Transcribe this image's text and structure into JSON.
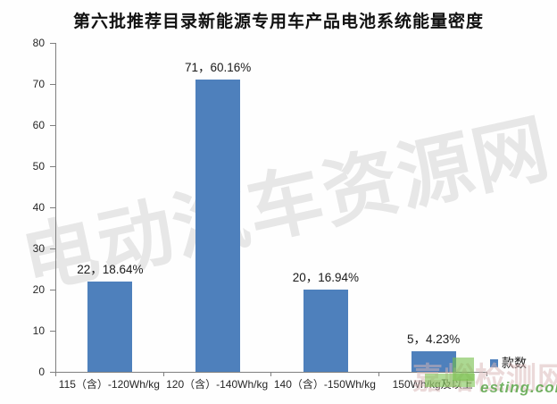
{
  "title": "第六批推荐目录新能源专用车产品电池系统能量密度",
  "chart_data": {
    "type": "bar",
    "title": "第六批推荐目录新能源专用车产品电池系统能量密度",
    "categories": [
      "115（含）-120Wh/kg",
      "120（含）-140Wh/kg",
      "140（含）-150Wh/kg",
      "150Wh/kg及以上"
    ],
    "values": [
      22,
      71,
      20,
      5
    ],
    "data_labels": [
      "22，18.64%",
      "71，60.16%",
      "20，16.94%",
      "5，4.23%"
    ],
    "series_name": "款数",
    "xlabel": "",
    "ylabel": "",
    "ylim": [
      0,
      80
    ],
    "yticks": [
      0,
      10,
      20,
      30,
      40,
      50,
      60,
      70,
      80
    ],
    "grid": false,
    "legend_position": "bottom-right",
    "bar_color": "#4E80BC",
    "axis_color": "#7f7f7f"
  },
  "legend": {
    "label": "款数"
  },
  "watermarks": {
    "main": "电动汽车资源网",
    "secondary": "嘉峪检测网",
    "url_fragment": "esting.com"
  }
}
